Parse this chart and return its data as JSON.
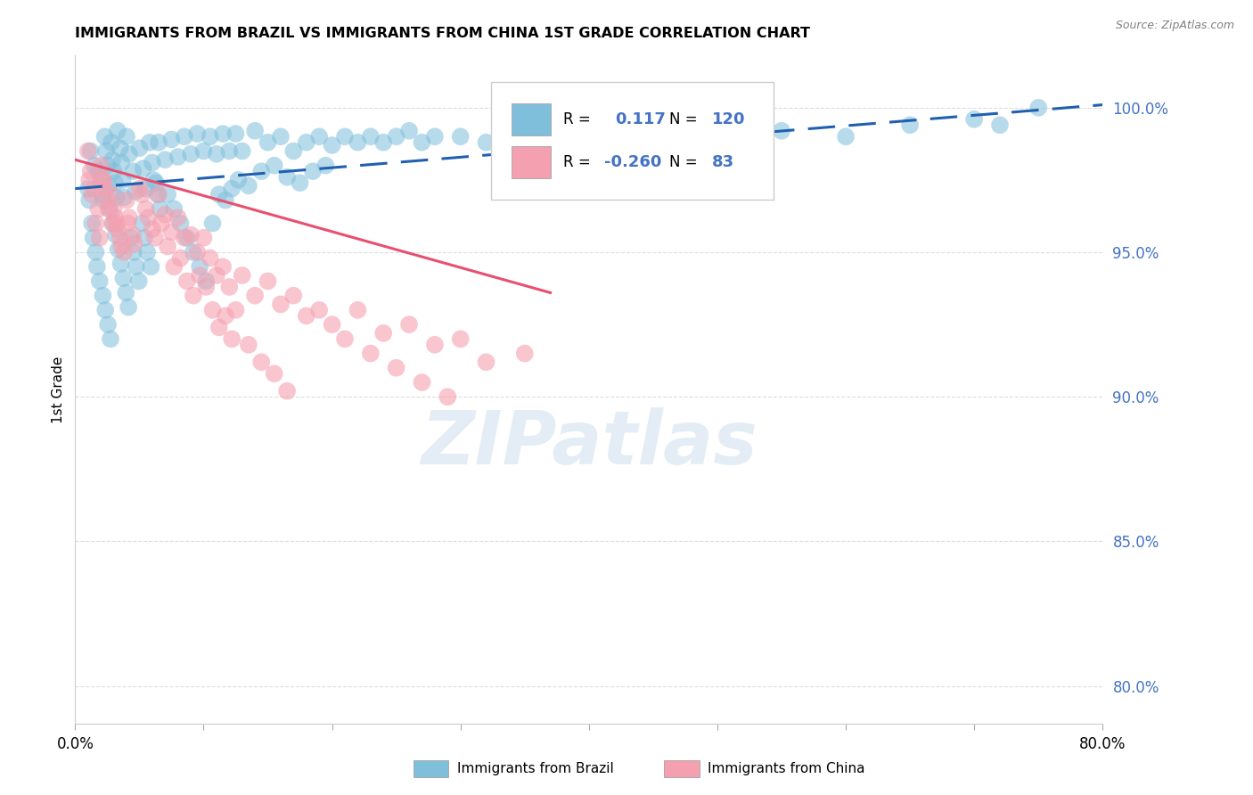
{
  "title": "IMMIGRANTS FROM BRAZIL VS IMMIGRANTS FROM CHINA 1ST GRADE CORRELATION CHART",
  "source": "Source: ZipAtlas.com",
  "ylabel": "1st Grade",
  "xlim": [
    0.0,
    80.0
  ],
  "ylim": [
    0.787,
    1.018
  ],
  "y_ticks": [
    0.8,
    0.85,
    0.9,
    0.95,
    1.0
  ],
  "y_tick_labels": [
    "80.0%",
    "85.0%",
    "90.0%",
    "95.0%",
    "100.0%"
  ],
  "x_ticks": [
    0,
    10,
    20,
    30,
    40,
    50,
    60,
    70,
    80
  ],
  "x_tick_labels": [
    "0.0%",
    "",
    "",
    "",
    "",
    "",
    "",
    "",
    "80.0%"
  ],
  "brazil_R": 0.117,
  "brazil_N": 120,
  "china_R": -0.26,
  "china_N": 83,
  "brazil_color": "#7fbfdc",
  "china_color": "#f5a0b0",
  "brazil_line_color": "#2060b0",
  "china_line_color": "#e85070",
  "legend_label_brazil": "Immigrants from Brazil",
  "legend_label_china": "Immigrants from China",
  "watermark": "ZIPatlas",
  "brazil_trend_x0": 0.0,
  "brazil_trend_y0": 0.972,
  "brazil_trend_x1": 80.0,
  "brazil_trend_y1": 1.001,
  "china_trend_x0": 0.0,
  "china_trend_y0": 0.982,
  "china_trend_x1": 37.0,
  "china_trend_y1": 0.936,
  "brazil_scatter_x": [
    1.0,
    1.2,
    1.5,
    1.8,
    2.0,
    2.1,
    2.2,
    2.3,
    2.4,
    2.5,
    2.6,
    2.7,
    2.8,
    2.9,
    3.0,
    3.1,
    3.2,
    3.3,
    3.5,
    3.6,
    3.7,
    3.8,
    4.0,
    4.2,
    4.5,
    4.7,
    5.0,
    5.3,
    5.5,
    5.8,
    6.0,
    6.3,
    6.5,
    7.0,
    7.5,
    8.0,
    8.5,
    9.0,
    9.5,
    10.0,
    10.5,
    11.0,
    11.5,
    12.0,
    12.5,
    13.0,
    14.0,
    15.0,
    16.0,
    17.0,
    18.0,
    19.0,
    20.0,
    21.0,
    22.0,
    23.0,
    24.0,
    25.0,
    26.0,
    28.0,
    30.0,
    32.0,
    35.0,
    40.0,
    45.0,
    50.0,
    55.0,
    60.0,
    65.0,
    70.0,
    72.0,
    75.0,
    1.1,
    1.3,
    1.4,
    1.6,
    1.7,
    1.9,
    2.15,
    2.35,
    2.55,
    2.75,
    2.95,
    3.15,
    3.35,
    3.55,
    3.75,
    3.95,
    4.15,
    4.35,
    4.55,
    4.75,
    4.95,
    5.2,
    5.4,
    5.6,
    5.9,
    6.1,
    6.4,
    6.6,
    7.2,
    7.7,
    8.2,
    8.7,
    9.2,
    9.7,
    10.2,
    10.7,
    11.2,
    11.7,
    12.2,
    12.7,
    13.5,
    14.5,
    15.5,
    16.5,
    17.5,
    18.5,
    19.5,
    27.0
  ],
  "brazil_scatter_y": [
    0.972,
    0.985,
    0.98,
    0.978,
    0.975,
    0.97,
    0.968,
    0.99,
    0.985,
    0.98,
    0.973,
    0.965,
    0.988,
    0.982,
    0.978,
    0.974,
    0.969,
    0.992,
    0.986,
    0.981,
    0.975,
    0.969,
    0.99,
    0.984,
    0.978,
    0.971,
    0.986,
    0.979,
    0.972,
    0.988,
    0.981,
    0.974,
    0.988,
    0.982,
    0.989,
    0.983,
    0.99,
    0.984,
    0.991,
    0.985,
    0.99,
    0.984,
    0.991,
    0.985,
    0.991,
    0.985,
    0.992,
    0.988,
    0.99,
    0.985,
    0.988,
    0.99,
    0.987,
    0.99,
    0.988,
    0.99,
    0.988,
    0.99,
    0.992,
    0.99,
    0.99,
    0.988,
    0.992,
    0.992,
    0.992,
    0.992,
    0.992,
    0.99,
    0.994,
    0.996,
    0.994,
    1.0,
    0.968,
    0.96,
    0.955,
    0.95,
    0.945,
    0.94,
    0.935,
    0.93,
    0.925,
    0.92,
    0.96,
    0.956,
    0.951,
    0.946,
    0.941,
    0.936,
    0.931,
    0.955,
    0.95,
    0.945,
    0.94,
    0.96,
    0.955,
    0.95,
    0.945,
    0.975,
    0.97,
    0.965,
    0.97,
    0.965,
    0.96,
    0.955,
    0.95,
    0.945,
    0.94,
    0.96,
    0.97,
    0.968,
    0.972,
    0.975,
    0.973,
    0.978,
    0.98,
    0.976,
    0.974,
    0.978,
    0.98,
    0.988
  ],
  "china_scatter_x": [
    1.0,
    1.2,
    1.5,
    1.8,
    2.0,
    2.2,
    2.5,
    2.8,
    3.0,
    3.2,
    3.5,
    3.8,
    4.0,
    4.2,
    4.5,
    5.0,
    5.5,
    6.0,
    6.5,
    7.0,
    7.5,
    8.0,
    8.5,
    9.0,
    9.5,
    10.0,
    10.5,
    11.0,
    11.5,
    12.0,
    12.5,
    13.0,
    14.0,
    15.0,
    16.0,
    17.0,
    18.0,
    19.0,
    20.0,
    22.0,
    24.0,
    26.0,
    28.0,
    30.0,
    32.0,
    35.0,
    1.1,
    1.3,
    1.6,
    1.9,
    2.1,
    2.3,
    2.6,
    2.9,
    3.1,
    3.3,
    3.6,
    4.1,
    4.6,
    5.2,
    5.7,
    6.2,
    6.7,
    7.2,
    7.7,
    8.2,
    8.7,
    9.2,
    9.7,
    10.2,
    10.7,
    11.2,
    11.7,
    12.2,
    13.5,
    14.5,
    15.5,
    16.5,
    21.0,
    23.0,
    25.0,
    27.0,
    29.0
  ],
  "china_scatter_y": [
    0.985,
    0.978,
    0.972,
    0.965,
    0.98,
    0.975,
    0.968,
    0.97,
    0.965,
    0.96,
    0.955,
    0.95,
    0.968,
    0.962,
    0.956,
    0.972,
    0.965,
    0.958,
    0.97,
    0.963,
    0.957,
    0.962,
    0.955,
    0.956,
    0.95,
    0.955,
    0.948,
    0.942,
    0.945,
    0.938,
    0.93,
    0.942,
    0.935,
    0.94,
    0.932,
    0.935,
    0.928,
    0.93,
    0.925,
    0.93,
    0.922,
    0.925,
    0.918,
    0.92,
    0.912,
    0.915,
    0.975,
    0.97,
    0.96,
    0.955,
    0.975,
    0.972,
    0.965,
    0.96,
    0.962,
    0.958,
    0.952,
    0.96,
    0.953,
    0.97,
    0.962,
    0.955,
    0.96,
    0.952,
    0.945,
    0.948,
    0.94,
    0.935,
    0.942,
    0.938,
    0.93,
    0.924,
    0.928,
    0.92,
    0.918,
    0.912,
    0.908,
    0.902,
    0.92,
    0.915,
    0.91,
    0.905,
    0.9
  ]
}
